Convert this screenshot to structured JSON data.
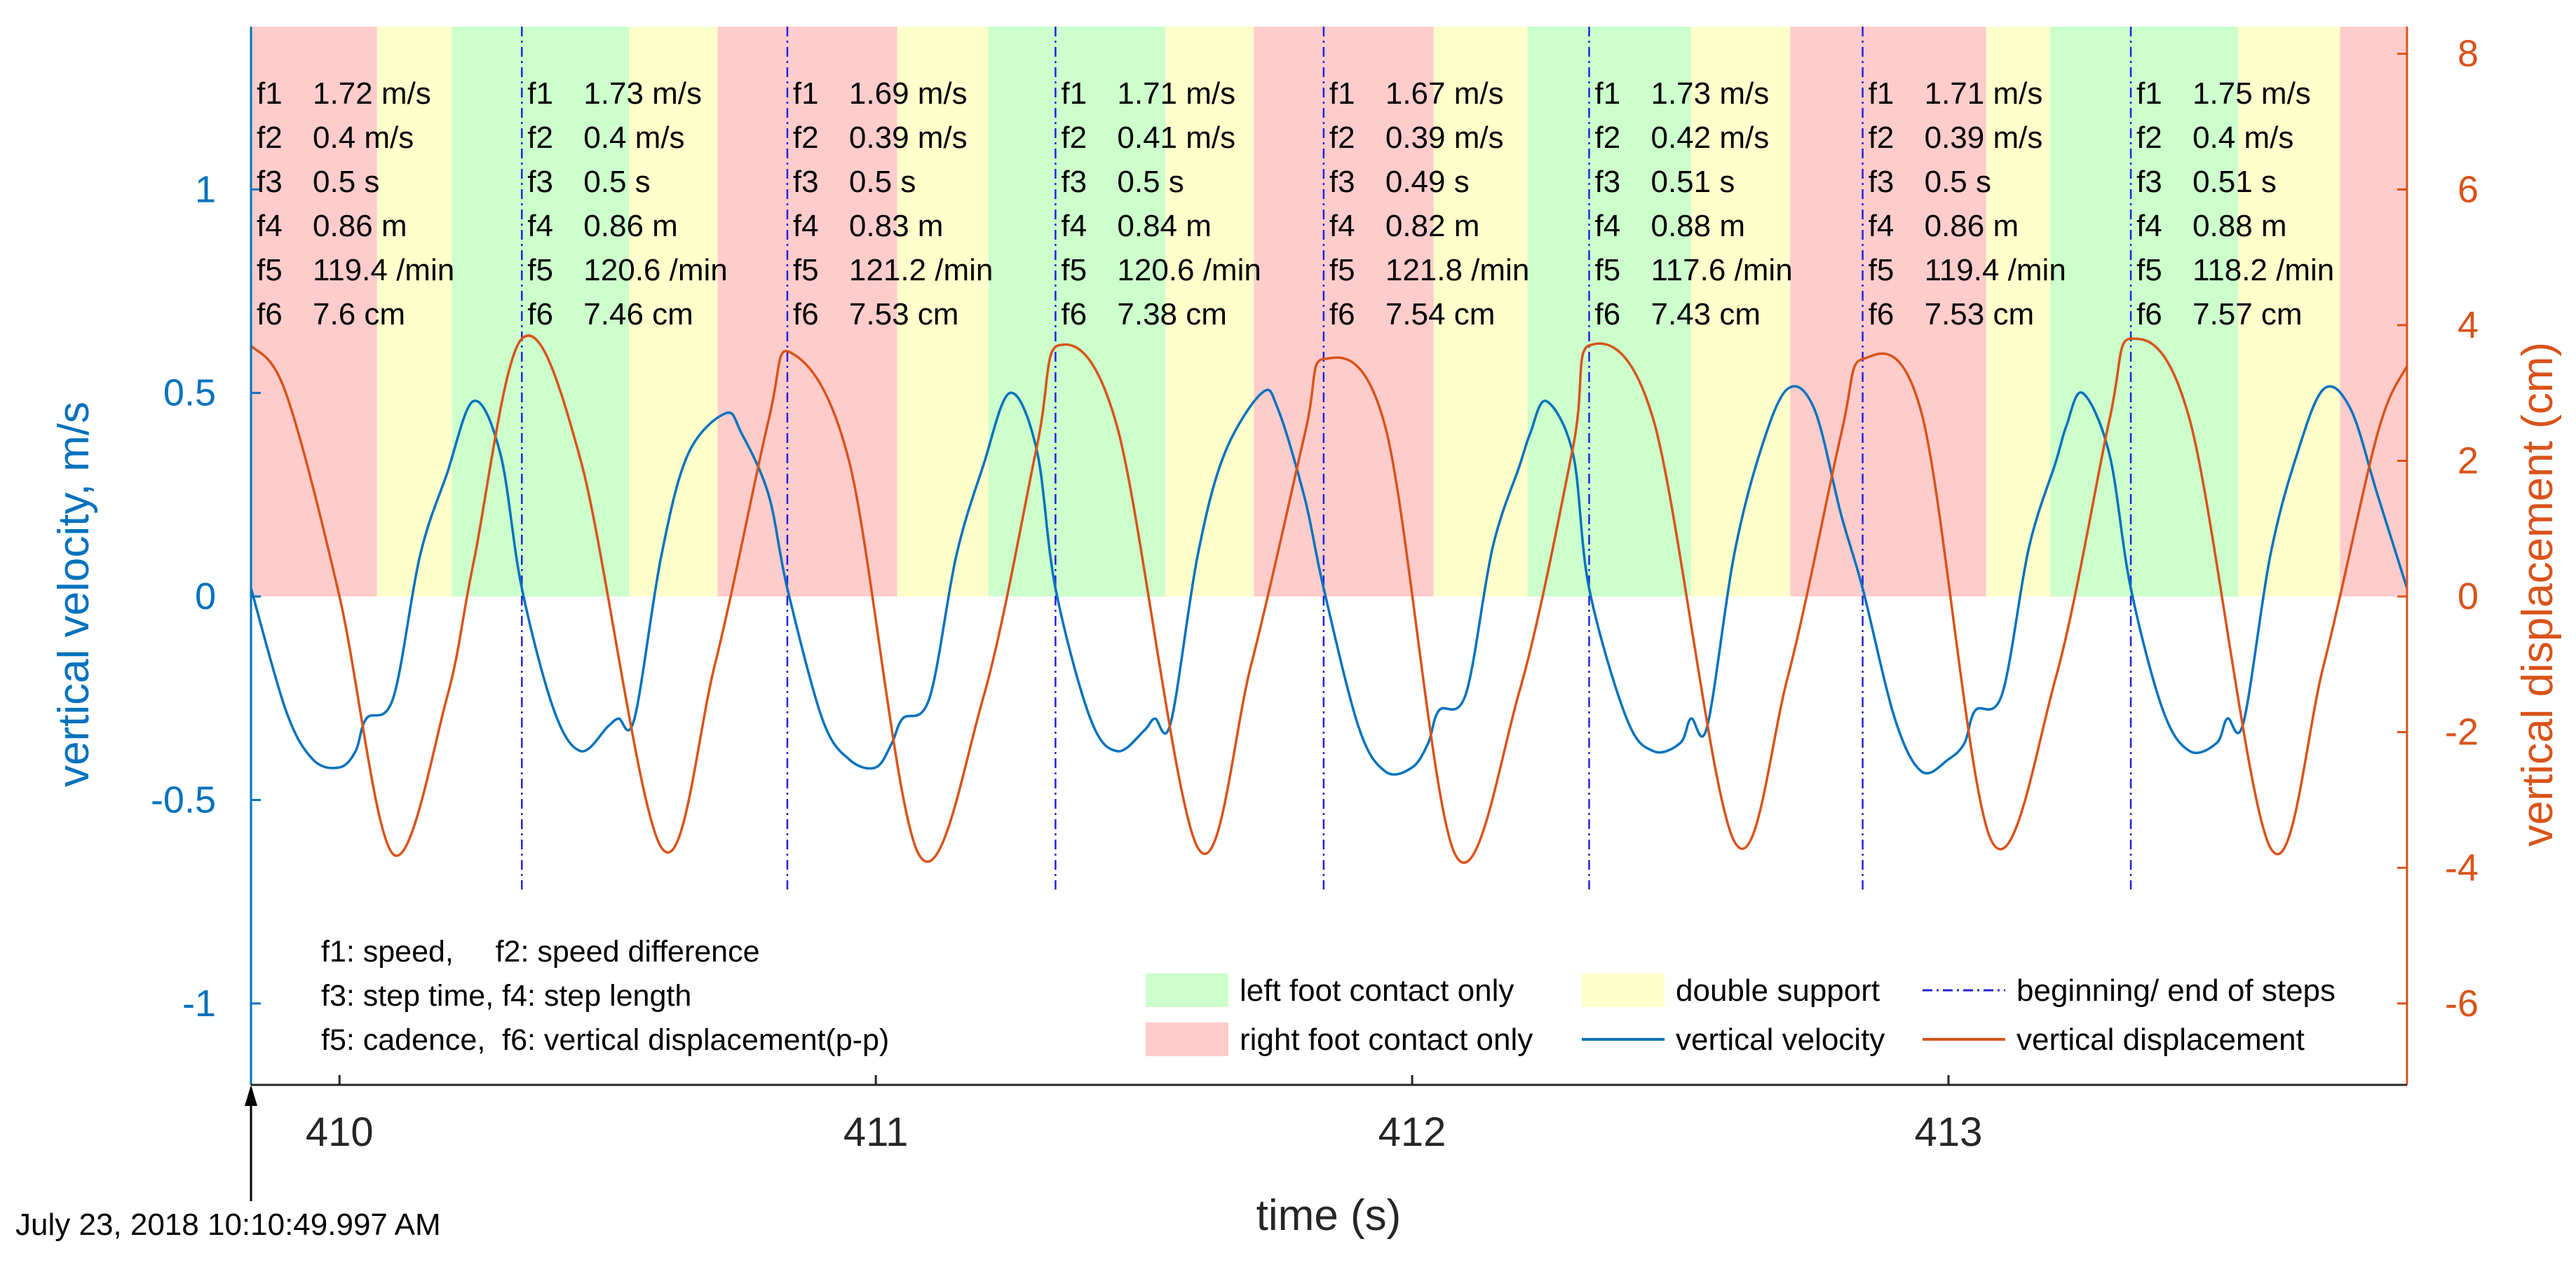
{
  "chart_data": {
    "type": "line",
    "title": "",
    "xlabel": "time (s)",
    "ylabel_left": "vertical velocity, m/s",
    "ylabel_right": "vertical displacement (cm)",
    "xlim": [
      409.835,
      413.855
    ],
    "ylim_left": [
      -1.2,
      1.4
    ],
    "ylim_right": [
      -7.2,
      8.4
    ],
    "xticks": [
      410,
      411,
      412,
      413
    ],
    "yticks_left": [
      -1,
      -0.5,
      0,
      0.5,
      1
    ],
    "yticks_right": [
      -6,
      -4,
      -2,
      0,
      2,
      4,
      6,
      8
    ],
    "colors": {
      "velocity": "#0072BD",
      "displacement": "#D95319",
      "step_boundary": "#2323DC",
      "left_contact": "#CCFFCC",
      "right_contact": "#FFCCCC",
      "double_support": "#FFFFCC",
      "axis_left": "#0072BD",
      "axis_right": "#D95319"
    },
    "step_boundaries": [
      409.835,
      410.34,
      410.835,
      411.335,
      411.835,
      412.33,
      412.84,
      413.34,
      413.855
    ],
    "phases": [
      {
        "type": "right",
        "start": 409.835,
        "end": 410.07
      },
      {
        "type": "double",
        "start": 410.07,
        "end": 410.21
      },
      {
        "type": "left",
        "start": 410.21,
        "end": 410.54
      },
      {
        "type": "double",
        "start": 410.54,
        "end": 410.705
      },
      {
        "type": "right",
        "start": 410.705,
        "end": 411.04
      },
      {
        "type": "double",
        "start": 411.04,
        "end": 411.21
      },
      {
        "type": "left",
        "start": 411.21,
        "end": 411.54
      },
      {
        "type": "double",
        "start": 411.54,
        "end": 411.705
      },
      {
        "type": "right",
        "start": 411.705,
        "end": 412.04
      },
      {
        "type": "double",
        "start": 412.04,
        "end": 412.215
      },
      {
        "type": "left",
        "start": 412.215,
        "end": 412.52
      },
      {
        "type": "double",
        "start": 412.52,
        "end": 412.705
      },
      {
        "type": "right",
        "start": 412.705,
        "end": 413.07
      },
      {
        "type": "double",
        "start": 413.07,
        "end": 413.19
      },
      {
        "type": "left",
        "start": 413.19,
        "end": 413.54
      },
      {
        "type": "double",
        "start": 413.54,
        "end": 413.73
      },
      {
        "type": "right",
        "start": 413.73,
        "end": 413.855
      }
    ],
    "series": [
      {
        "name": "vertical velocity",
        "axis": "left",
        "x": [
          409.835,
          409.9,
          409.95,
          410.0,
          410.03,
          410.05,
          410.1,
          410.15,
          410.2,
          410.25,
          410.3,
          410.34,
          410.4,
          410.45,
          410.5,
          410.52,
          410.55,
          410.6,
          410.65,
          410.72,
          410.75,
          410.8,
          410.835,
          410.9,
          410.95,
          411.0,
          411.03,
          411.05,
          411.1,
          411.15,
          411.2,
          411.25,
          411.3,
          411.335,
          411.4,
          411.45,
          411.5,
          411.52,
          411.55,
          411.6,
          411.65,
          411.72,
          411.75,
          411.8,
          411.835,
          411.9,
          411.95,
          412.0,
          412.03,
          412.05,
          412.1,
          412.15,
          412.2,
          412.22,
          412.25,
          412.3,
          412.33,
          412.4,
          412.45,
          412.5,
          412.52,
          412.55,
          412.6,
          412.65,
          412.7,
          412.75,
          412.8,
          412.84,
          412.9,
          412.95,
          413.0,
          413.03,
          413.05,
          413.1,
          413.15,
          413.2,
          413.22,
          413.25,
          413.3,
          413.34,
          413.4,
          413.45,
          413.5,
          413.52,
          413.55,
          413.6,
          413.65,
          413.7,
          413.75,
          413.8,
          413.855
        ],
        "values": [
          0.02,
          -0.28,
          -0.4,
          -0.42,
          -0.38,
          -0.3,
          -0.25,
          0.1,
          0.3,
          0.48,
          0.35,
          0.02,
          -0.28,
          -0.38,
          -0.32,
          -0.3,
          -0.3,
          0.1,
          0.35,
          0.45,
          0.4,
          0.25,
          0.02,
          -0.3,
          -0.4,
          -0.42,
          -0.36,
          -0.3,
          -0.25,
          0.1,
          0.32,
          0.5,
          0.36,
          0.02,
          -0.3,
          -0.38,
          -0.33,
          -0.3,
          -0.31,
          0.1,
          0.35,
          0.5,
          0.46,
          0.24,
          0.02,
          -0.32,
          -0.43,
          -0.42,
          -0.36,
          -0.28,
          -0.24,
          0.12,
          0.32,
          0.4,
          0.48,
          0.35,
          0.02,
          -0.3,
          -0.38,
          -0.36,
          -0.3,
          -0.32,
          0.1,
          0.36,
          0.51,
          0.46,
          0.2,
          0.02,
          -0.3,
          -0.43,
          -0.4,
          -0.36,
          -0.28,
          -0.24,
          0.12,
          0.33,
          0.42,
          0.5,
          0.35,
          0.02,
          -0.28,
          -0.38,
          -0.36,
          -0.3,
          -0.31,
          0.1,
          0.35,
          0.51,
          0.46,
          0.25,
          0.02
        ]
      },
      {
        "name": "vertical displacement",
        "axis": "right",
        "x": [
          409.835,
          409.9,
          410.0,
          410.1,
          410.2,
          410.25,
          410.34,
          410.45,
          410.6,
          410.7,
          410.8,
          410.84,
          410.95,
          411.08,
          411.2,
          411.3,
          411.34,
          411.45,
          411.6,
          411.7,
          411.8,
          411.835,
          411.95,
          412.08,
          412.2,
          412.3,
          412.33,
          412.45,
          412.6,
          412.7,
          412.8,
          412.84,
          412.95,
          413.08,
          413.2,
          413.3,
          413.34,
          413.45,
          413.6,
          413.7,
          413.8,
          413.855
        ],
        "values": [
          3.7,
          3.0,
          0.0,
          -3.8,
          -1.5,
          0.5,
          3.8,
          2.0,
          -3.7,
          -1.0,
          2.6,
          3.6,
          2.0,
          -3.8,
          -1.5,
          2.2,
          3.7,
          2.5,
          -3.7,
          -1.0,
          2.4,
          3.5,
          2.5,
          -3.8,
          -1.4,
          2.2,
          3.7,
          2.6,
          -3.6,
          -1.2,
          2.4,
          3.5,
          2.7,
          -3.6,
          -1.2,
          2.6,
          3.8,
          2.6,
          -3.7,
          -1.0,
          2.4,
          3.4
        ]
      }
    ],
    "step_annotations": [
      {
        "f1": "1.72 m/s",
        "f2": "0.4 m/s",
        "f3": "0.5 s",
        "f4": "0.86 m",
        "f5": "119.4 /min",
        "f6": "7.6 cm"
      },
      {
        "f1": "1.73 m/s",
        "f2": "0.4 m/s",
        "f3": "0.5 s",
        "f4": "0.86 m",
        "f5": "120.6 /min",
        "f6": "7.46 cm"
      },
      {
        "f1": "1.69 m/s",
        "f2": "0.39 m/s",
        "f3": "0.5 s",
        "f4": "0.83 m",
        "f5": "121.2 /min",
        "f6": "7.53 cm"
      },
      {
        "f1": "1.71 m/s",
        "f2": "0.41 m/s",
        "f3": "0.5 s",
        "f4": "0.84 m",
        "f5": "120.6 /min",
        "f6": "7.38 cm"
      },
      {
        "f1": "1.67 m/s",
        "f2": "0.39 m/s",
        "f3": "0.49 s",
        "f4": "0.82 m",
        "f5": "121.8 /min",
        "f6": "7.54 cm"
      },
      {
        "f1": "1.73 m/s",
        "f2": "0.42 m/s",
        "f3": "0.51 s",
        "f4": "0.88 m",
        "f5": "117.6 /min",
        "f6": "7.43 cm"
      },
      {
        "f1": "1.71 m/s",
        "f2": "0.39 m/s",
        "f3": "0.5 s",
        "f4": "0.86 m",
        "f5": "119.4 /min",
        "f6": "7.53 cm"
      },
      {
        "f1": "1.75 m/s",
        "f2": "0.4 m/s",
        "f3": "0.51 s",
        "f4": "0.88 m",
        "f5": "118.2 /min",
        "f6": "7.57 cm"
      }
    ],
    "feature_legend": [
      "f1: speed,     f2: speed difference",
      "f3: step time, f4: step length",
      "f5: cadence,  f6: vertical displacement(p-p)"
    ],
    "legend": [
      {
        "key": "left_contact",
        "kind": "patch",
        "label": "left foot contact only"
      },
      {
        "key": "double_support",
        "kind": "patch",
        "label": "double support"
      },
      {
        "key": "step_boundary",
        "kind": "dashdot",
        "label": "beginning/ end of steps"
      },
      {
        "key": "right_contact",
        "kind": "patch",
        "label": "right foot contact only"
      },
      {
        "key": "velocity",
        "kind": "line",
        "label": "vertical velocity"
      },
      {
        "key": "displacement",
        "kind": "line",
        "label": "vertical displacement"
      }
    ],
    "timestamp": "July 23, 2018 10:10:49.997 AM"
  }
}
